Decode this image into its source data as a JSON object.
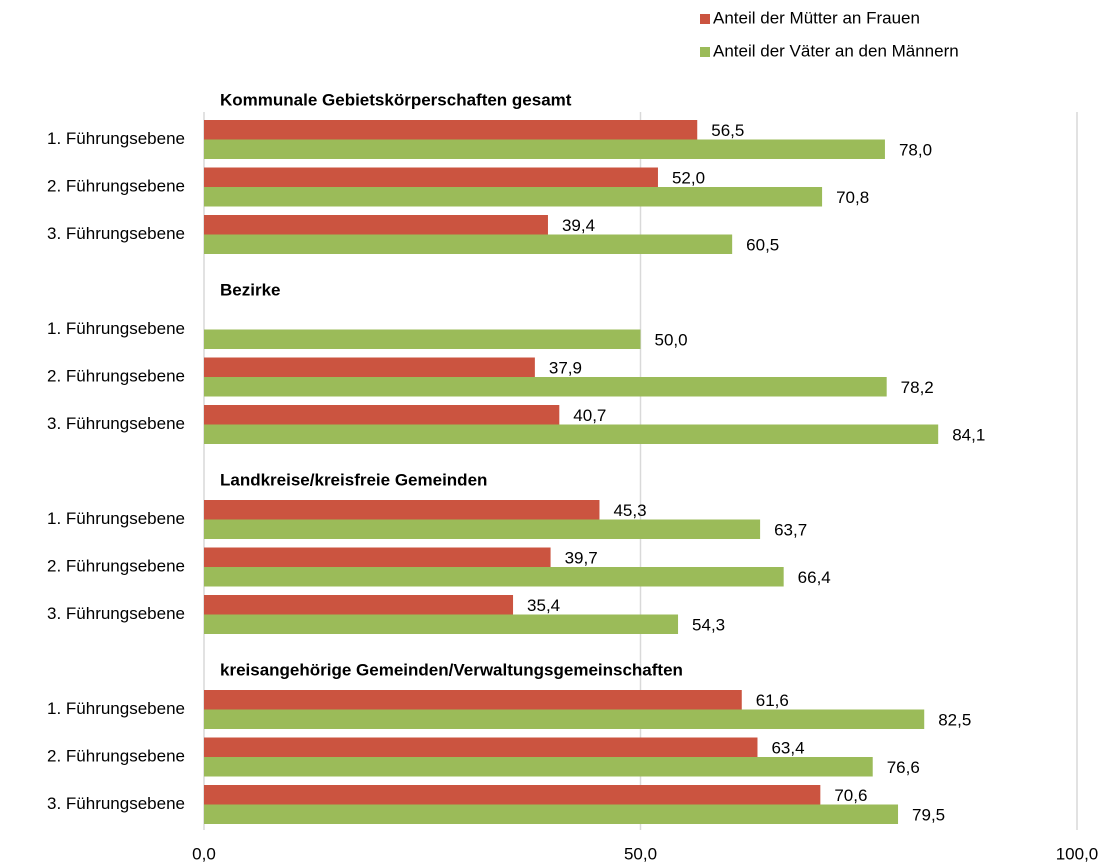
{
  "chart_data": {
    "type": "bar",
    "orientation": "horizontal",
    "groups": [
      "Kommunale Gebietskörperschaften gesamt",
      "Bezirke",
      "Landkreise/kreisfreie Gemeinden",
      "kreisangehörige Gemeinden/Verwaltungsgemeinschaften"
    ],
    "categories": [
      "1. Führungsebene",
      "2. Führungsebene",
      "3. Führungsebene",
      "1. Führungsebene",
      "2. Führungsebene",
      "3. Führungsebene",
      "1. Führungsebene",
      "2. Führungsebene",
      "3. Führungsebene",
      "1. Führungsebene",
      "2. Führungsebene",
      "3. Führungsebene"
    ],
    "series": [
      {
        "name": "Anteil der Mütter an Frauen",
        "color": "#cb5440",
        "values": [
          56.5,
          52.0,
          39.4,
          null,
          37.9,
          40.7,
          45.3,
          39.7,
          35.4,
          61.6,
          63.4,
          70.6
        ],
        "value_labels": [
          "56,5",
          "52,0",
          "39,4",
          null,
          "37,9",
          "40,7",
          "45,3",
          "39,7",
          "35,4",
          "61,6",
          "63,4",
          "70,6"
        ]
      },
      {
        "name": "Anteil der Väter an den Männern",
        "color": "#9bbb59",
        "values": [
          78.0,
          70.8,
          60.5,
          50.0,
          78.2,
          84.1,
          63.7,
          66.4,
          54.3,
          82.5,
          76.6,
          79.5
        ],
        "value_labels": [
          "78,0",
          "70,8",
          "60,5",
          "50,0",
          "78,2",
          "84,1",
          "63,7",
          "66,4",
          "54,3",
          "82,5",
          "76,6",
          "79,5"
        ]
      }
    ],
    "xlim": [
      0,
      100
    ],
    "xticks": [
      {
        "value": 0,
        "label": "0,0"
      },
      {
        "value": 50,
        "label": "50,0"
      },
      {
        "value": 100,
        "label": "100,0"
      }
    ],
    "grid": true,
    "legend": "top-right"
  }
}
